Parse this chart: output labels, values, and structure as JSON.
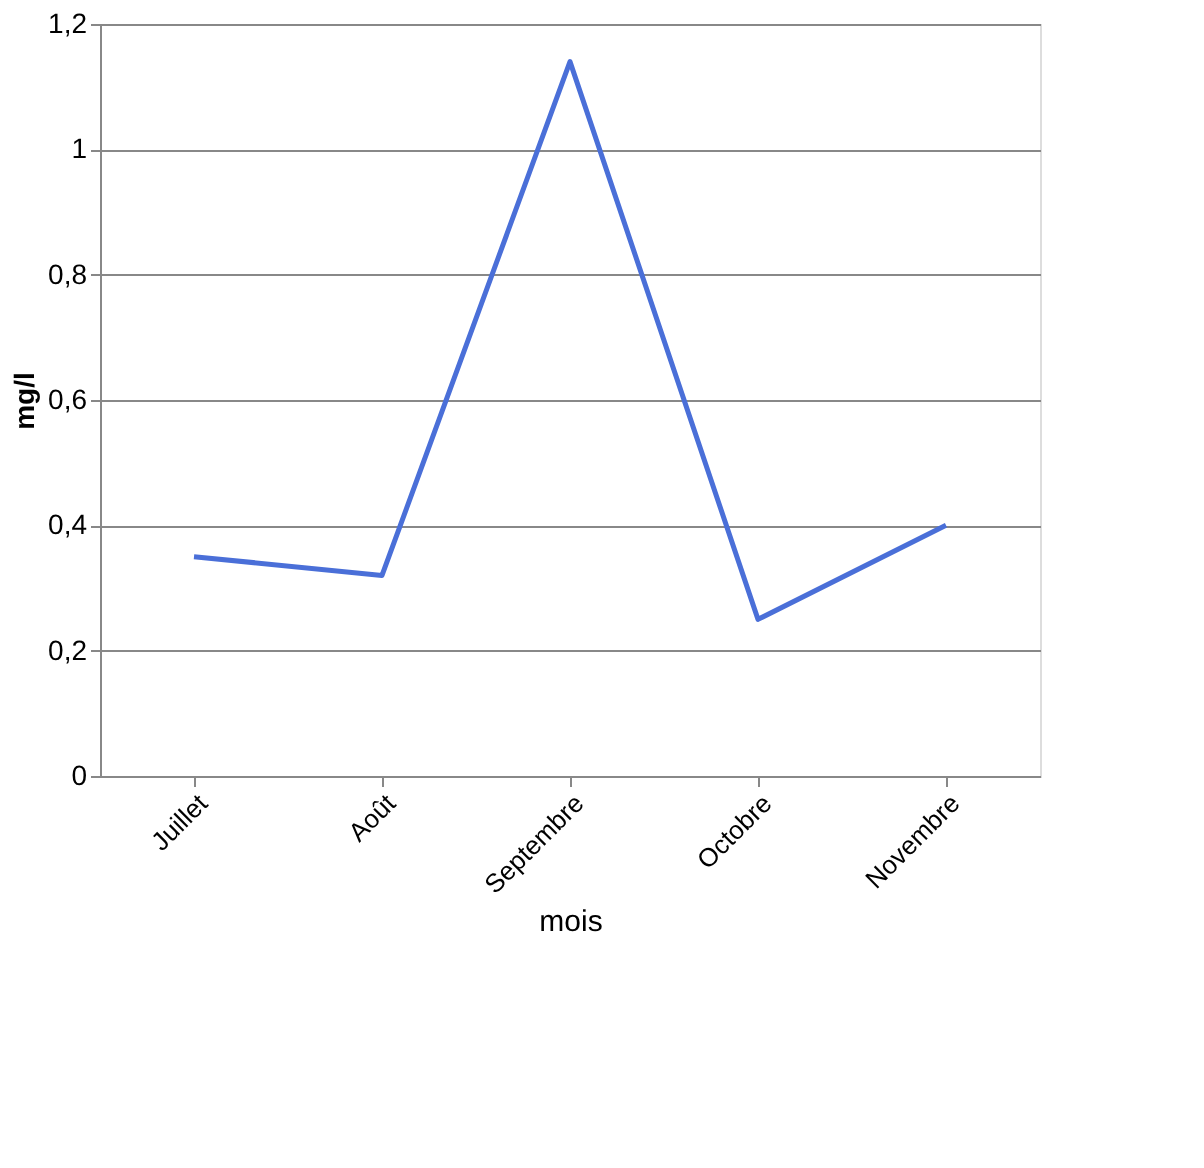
{
  "chart_data": {
    "type": "line",
    "xlabel": "mois",
    "ylabel": "mg/l",
    "categories": [
      "Juillet",
      "Août",
      "Septembre",
      "Octobre",
      "Novembre"
    ],
    "series": [
      {
        "color": "#4a6fd8",
        "values": [
          0.35,
          0.32,
          1.14,
          0.25,
          0.4
        ]
      }
    ],
    "ylim": [
      0,
      1.2
    ],
    "yticks": [
      0,
      {
        "value": 0.2,
        "label": "0,2"
      },
      {
        "value": 0.4,
        "label": "0,4"
      },
      {
        "value": 0.6,
        "label": "0,6"
      },
      {
        "value": 0.8,
        "label": "0,8"
      },
      1,
      {
        "value": 1.2,
        "label": "1,2"
      }
    ],
    "grid": "y",
    "marker": "none",
    "line_style": "solid",
    "legend": false
  }
}
